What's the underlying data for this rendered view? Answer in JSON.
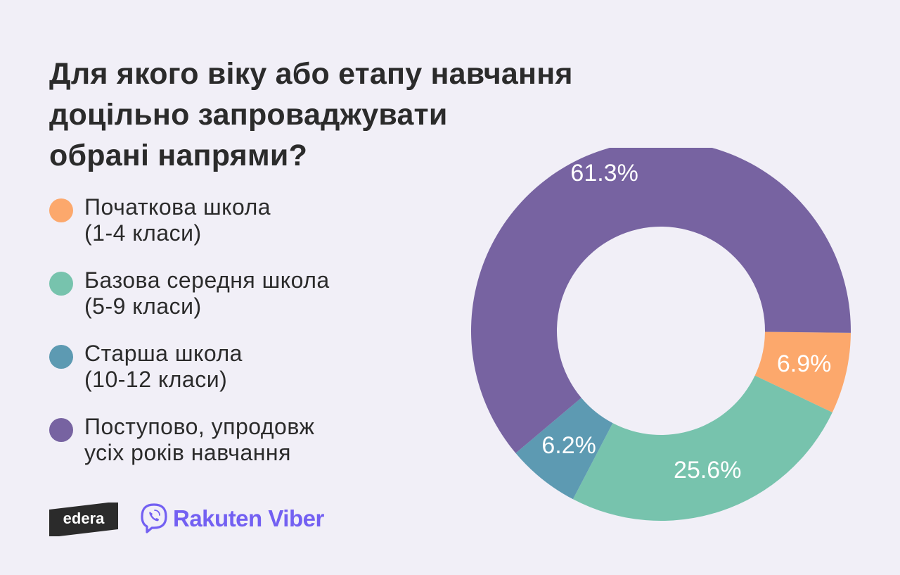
{
  "title_lines": [
    "Для якого віку або етапу навчання",
    "доцільно запроваджувати",
    "обрані напрями?"
  ],
  "legend": [
    {
      "lines": [
        "Початкова школа",
        "(1-4 класи)"
      ],
      "color": "#fca86c"
    },
    {
      "lines": [
        "Базова середня школа",
        "(5-9 класи)"
      ],
      "color": "#77c3ad"
    },
    {
      "lines": [
        "Старша школа",
        "(10-12 класи)"
      ],
      "color": "#5d9ab2"
    },
    {
      "lines": [
        "Поступово, упродовж",
        "усіх років навчання"
      ],
      "color": "#7763a1"
    }
  ],
  "chart_data": {
    "type": "pie",
    "donut": true,
    "title": "Для якого віку або етапу навчання доцільно запроваджувати обрані напрями?",
    "legend_position": "left",
    "slices": [
      {
        "label": "Початкова школа (1-4 класи)",
        "value": 6.9,
        "display": "6.9%",
        "color": "#fca86c"
      },
      {
        "label": "Базова середня школа (5-9 класи)",
        "value": 25.6,
        "display": "25.6%",
        "color": "#77c3ad"
      },
      {
        "label": "Старша школа (10-12 класи)",
        "value": 6.2,
        "display": "6.2%",
        "color": "#5d9ab2"
      },
      {
        "label": "Поступово, упродовж усіх років навчання",
        "value": 61.3,
        "display": "61.3%",
        "color": "#7763a1"
      }
    ]
  },
  "logos": {
    "edera": "edera",
    "viber": "Rakuten Viber"
  }
}
